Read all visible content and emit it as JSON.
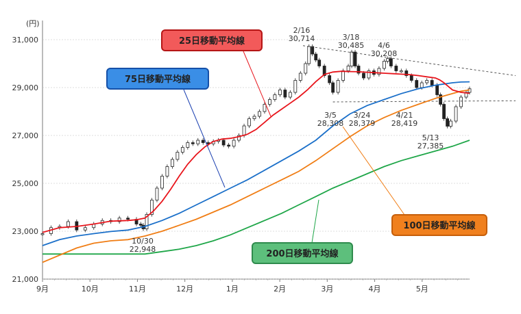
{
  "chart_data": {
    "type": "candlestick-with-moving-averages",
    "unit_label": "(円)",
    "y_ticks": [
      21000,
      23000,
      25000,
      27000,
      29000,
      31000
    ],
    "y_range": [
      21000,
      31800
    ],
    "x_labels": [
      "9月",
      "10月",
      "11月",
      "12月",
      "1月",
      "2月",
      "3月",
      "4月",
      "5月"
    ],
    "colors": {
      "ma25": "#e8141b",
      "ma75": "#1a6fc9",
      "ma100": "#f07d14",
      "ma200": "#1ea648",
      "candle": "#222222",
      "label25": "#f25a5a",
      "label75": "#3a8ee6",
      "label100": "#f0801e",
      "label200": "#5dbf7c"
    },
    "series_labels": {
      "ma25": "25日移動平均線",
      "ma75": "75日移動平均線",
      "ma100": "100日移動平均線",
      "ma200": "200日移動平均線"
    },
    "annotations": [
      {
        "date": "2/16",
        "value": "30,714",
        "y": 30714
      },
      {
        "date": "3/18",
        "value": "30,485",
        "y": 30485
      },
      {
        "date": "4/6",
        "value": "30,208",
        "y": 30208
      },
      {
        "date": "3/5",
        "value": "28,308",
        "y": 28308
      },
      {
        "date": "3/24",
        "value": "28,379",
        "y": 28379
      },
      {
        "date": "4/21",
        "value": "28,419",
        "y": 28419
      },
      {
        "date": "5/13",
        "value": "27,385",
        "y": 27385
      },
      {
        "date": "10/30",
        "value": "22,948",
        "y": 22948
      }
    ],
    "ma25": [
      [
        0,
        22950
      ],
      [
        20,
        23150
      ],
      [
        40,
        23200
      ],
      [
        60,
        23300
      ],
      [
        80,
        23420
      ],
      [
        100,
        23450
      ],
      [
        110,
        23480
      ],
      [
        120,
        23550
      ],
      [
        130,
        23850
      ],
      [
        140,
        24250
      ],
      [
        150,
        24750
      ],
      [
        160,
        25300
      ],
      [
        170,
        25800
      ],
      [
        180,
        26200
      ],
      [
        190,
        26520
      ],
      [
        200,
        26750
      ],
      [
        210,
        26850
      ],
      [
        220,
        26880
      ],
      [
        230,
        26950
      ],
      [
        240,
        27050
      ],
      [
        250,
        27250
      ],
      [
        260,
        27550
      ],
      [
        270,
        27850
      ],
      [
        280,
        28100
      ],
      [
        290,
        28350
      ],
      [
        300,
        28600
      ],
      [
        310,
        28900
      ],
      [
        320,
        29250
      ],
      [
        330,
        29550
      ],
      [
        340,
        29650
      ],
      [
        350,
        29680
      ],
      [
        360,
        29670
      ],
      [
        370,
        29660
      ],
      [
        380,
        29640
      ],
      [
        390,
        29620
      ],
      [
        400,
        29600
      ],
      [
        410,
        29580
      ],
      [
        420,
        29560
      ],
      [
        430,
        29540
      ],
      [
        440,
        29500
      ],
      [
        450,
        29450
      ],
      [
        460,
        29400
      ],
      [
        465,
        29320
      ],
      [
        470,
        29200
      ],
      [
        475,
        29050
      ],
      [
        480,
        28900
      ],
      [
        490,
        28800
      ],
      [
        500,
        28760
      ]
    ],
    "ma75": [
      [
        0,
        22400
      ],
      [
        20,
        22650
      ],
      [
        40,
        22800
      ],
      [
        60,
        22900
      ],
      [
        80,
        22990
      ],
      [
        100,
        23050
      ],
      [
        120,
        23200
      ],
      [
        140,
        23450
      ],
      [
        160,
        23750
      ],
      [
        180,
        24100
      ],
      [
        200,
        24450
      ],
      [
        220,
        24800
      ],
      [
        240,
        25150
      ],
      [
        260,
        25550
      ],
      [
        280,
        25950
      ],
      [
        300,
        26350
      ],
      [
        320,
        26800
      ],
      [
        340,
        27400
      ],
      [
        360,
        27900
      ],
      [
        380,
        28250
      ],
      [
        400,
        28500
      ],
      [
        420,
        28750
      ],
      [
        440,
        28950
      ],
      [
        460,
        29100
      ],
      [
        470,
        29150
      ],
      [
        480,
        29200
      ],
      [
        490,
        29230
      ],
      [
        500,
        29240
      ]
    ],
    "ma100": [
      [
        0,
        21700
      ],
      [
        20,
        22000
      ],
      [
        40,
        22300
      ],
      [
        60,
        22500
      ],
      [
        80,
        22600
      ],
      [
        100,
        22650
      ],
      [
        120,
        22800
      ],
      [
        140,
        23000
      ],
      [
        160,
        23250
      ],
      [
        180,
        23500
      ],
      [
        200,
        23800
      ],
      [
        220,
        24100
      ],
      [
        240,
        24450
      ],
      [
        260,
        24800
      ],
      [
        280,
        25150
      ],
      [
        300,
        25500
      ],
      [
        320,
        25950
      ],
      [
        340,
        26450
      ],
      [
        360,
        26950
      ],
      [
        380,
        27400
      ],
      [
        400,
        27750
      ],
      [
        420,
        28050
      ],
      [
        440,
        28300
      ],
      [
        460,
        28550
      ],
      [
        480,
        28750
      ],
      [
        490,
        28850
      ],
      [
        500,
        28900
      ]
    ],
    "ma200": [
      [
        0,
        22050
      ],
      [
        20,
        22050
      ],
      [
        40,
        22050
      ],
      [
        60,
        22050
      ],
      [
        80,
        22050
      ],
      [
        100,
        22050
      ],
      [
        120,
        22050
      ],
      [
        140,
        22150
      ],
      [
        160,
        22250
      ],
      [
        180,
        22400
      ],
      [
        200,
        22600
      ],
      [
        220,
        22850
      ],
      [
        240,
        23150
      ],
      [
        260,
        23450
      ],
      [
        280,
        23750
      ],
      [
        300,
        24100
      ],
      [
        320,
        24450
      ],
      [
        340,
        24800
      ],
      [
        360,
        25100
      ],
      [
        380,
        25400
      ],
      [
        400,
        25700
      ],
      [
        420,
        25950
      ],
      [
        440,
        26150
      ],
      [
        460,
        26350
      ],
      [
        480,
        26550
      ],
      [
        500,
        26800
      ]
    ],
    "candles": [
      [
        0,
        22900
      ],
      [
        10,
        23150
      ],
      [
        20,
        23200
      ],
      [
        30,
        23400
      ],
      [
        40,
        23050
      ],
      [
        50,
        23150
      ],
      [
        60,
        23300
      ],
      [
        70,
        23450
      ],
      [
        80,
        23400
      ],
      [
        90,
        23550
      ],
      [
        100,
        23500
      ],
      [
        110,
        23300
      ],
      [
        115,
        23250
      ],
      [
        118,
        23100
      ],
      [
        122,
        23700
      ],
      [
        128,
        24300
      ],
      [
        134,
        24800
      ],
      [
        140,
        25300
      ],
      [
        146,
        25700
      ],
      [
        152,
        26000
      ],
      [
        158,
        26300
      ],
      [
        164,
        26500
      ],
      [
        170,
        26700
      ],
      [
        176,
        26650
      ],
      [
        182,
        26800
      ],
      [
        188,
        26700
      ],
      [
        194,
        26650
      ],
      [
        200,
        26750
      ],
      [
        206,
        26800
      ],
      [
        212,
        26600
      ],
      [
        218,
        26550
      ],
      [
        224,
        26800
      ],
      [
        230,
        27000
      ],
      [
        236,
        27400
      ],
      [
        242,
        27700
      ],
      [
        248,
        27800
      ],
      [
        254,
        28000
      ],
      [
        260,
        28300
      ],
      [
        266,
        28500
      ],
      [
        272,
        28700
      ],
      [
        278,
        28900
      ],
      [
        284,
        28600
      ],
      [
        290,
        28800
      ],
      [
        296,
        29300
      ],
      [
        302,
        29600
      ],
      [
        308,
        30000
      ],
      [
        312,
        30714
      ],
      [
        316,
        30400
      ],
      [
        320,
        30150
      ],
      [
        324,
        29900
      ],
      [
        330,
        29500
      ],
      [
        336,
        29200
      ],
      [
        340,
        28800
      ],
      [
        346,
        29300
      ],
      [
        352,
        29700
      ],
      [
        358,
        29900
      ],
      [
        362,
        30485
      ],
      [
        366,
        29900
      ],
      [
        370,
        29600
      ],
      [
        376,
        29400
      ],
      [
        382,
        29700
      ],
      [
        388,
        29550
      ],
      [
        394,
        29800
      ],
      [
        400,
        30100
      ],
      [
        404,
        30208
      ],
      [
        408,
        29900
      ],
      [
        414,
        29700
      ],
      [
        420,
        29700
      ],
      [
        426,
        29500
      ],
      [
        432,
        29300
      ],
      [
        438,
        29000
      ],
      [
        444,
        29200
      ],
      [
        450,
        29300
      ],
      [
        456,
        29100
      ],
      [
        462,
        28700
      ],
      [
        466,
        28300
      ],
      [
        470,
        27700
      ],
      [
        474,
        27385
      ],
      [
        478,
        27600
      ],
      [
        484,
        28200
      ],
      [
        490,
        28600
      ],
      [
        496,
        28800
      ],
      [
        500,
        28950
      ]
    ],
    "resistance_line": [
      [
        305,
        30750
      ],
      [
        560,
        29500
      ]
    ],
    "support_line": [
      [
        340,
        28400
      ],
      [
        560,
        28450
      ]
    ]
  }
}
